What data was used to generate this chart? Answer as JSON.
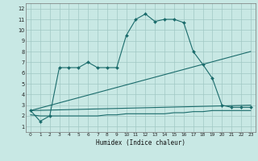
{
  "xlabel": "Humidex (Indice chaleur)",
  "background_color": "#c8e8e4",
  "grid_color": "#a0c8c4",
  "line_color": "#1a6b6b",
  "xlim": [
    -0.5,
    23.5
  ],
  "ylim": [
    0.5,
    12.5
  ],
  "xticks": [
    0,
    1,
    2,
    3,
    4,
    5,
    6,
    7,
    8,
    9,
    10,
    11,
    12,
    13,
    14,
    15,
    16,
    17,
    18,
    19,
    20,
    21,
    22,
    23
  ],
  "yticks": [
    1,
    2,
    3,
    4,
    5,
    6,
    7,
    8,
    9,
    10,
    11,
    12
  ],
  "line1_x": [
    0,
    1,
    2,
    3,
    4,
    5,
    6,
    7,
    8,
    9,
    10,
    11,
    12,
    13,
    14,
    15,
    16,
    17,
    18,
    19,
    20,
    21,
    22,
    23
  ],
  "line1_y": [
    2.5,
    1.5,
    2.0,
    6.5,
    6.5,
    6.5,
    7.0,
    6.5,
    6.5,
    6.5,
    9.5,
    11.0,
    11.5,
    10.8,
    11.0,
    11.0,
    10.7,
    8.0,
    6.8,
    5.5,
    3.0,
    2.8,
    2.8,
    2.8
  ],
  "line2_x": [
    0,
    23
  ],
  "line2_y": [
    2.5,
    8.0
  ],
  "line3_x": [
    0,
    23
  ],
  "line3_y": [
    2.5,
    3.0
  ],
  "line4_x": [
    0,
    1,
    2,
    3,
    4,
    5,
    6,
    7,
    8,
    9,
    10,
    11,
    12,
    13,
    14,
    15,
    16,
    17,
    18,
    19,
    20,
    21,
    22,
    23
  ],
  "line4_y": [
    2.1,
    2.0,
    2.0,
    2.0,
    2.0,
    2.0,
    2.0,
    2.0,
    2.1,
    2.1,
    2.2,
    2.2,
    2.2,
    2.2,
    2.2,
    2.3,
    2.3,
    2.4,
    2.4,
    2.5,
    2.5,
    2.5,
    2.5,
    2.5
  ]
}
